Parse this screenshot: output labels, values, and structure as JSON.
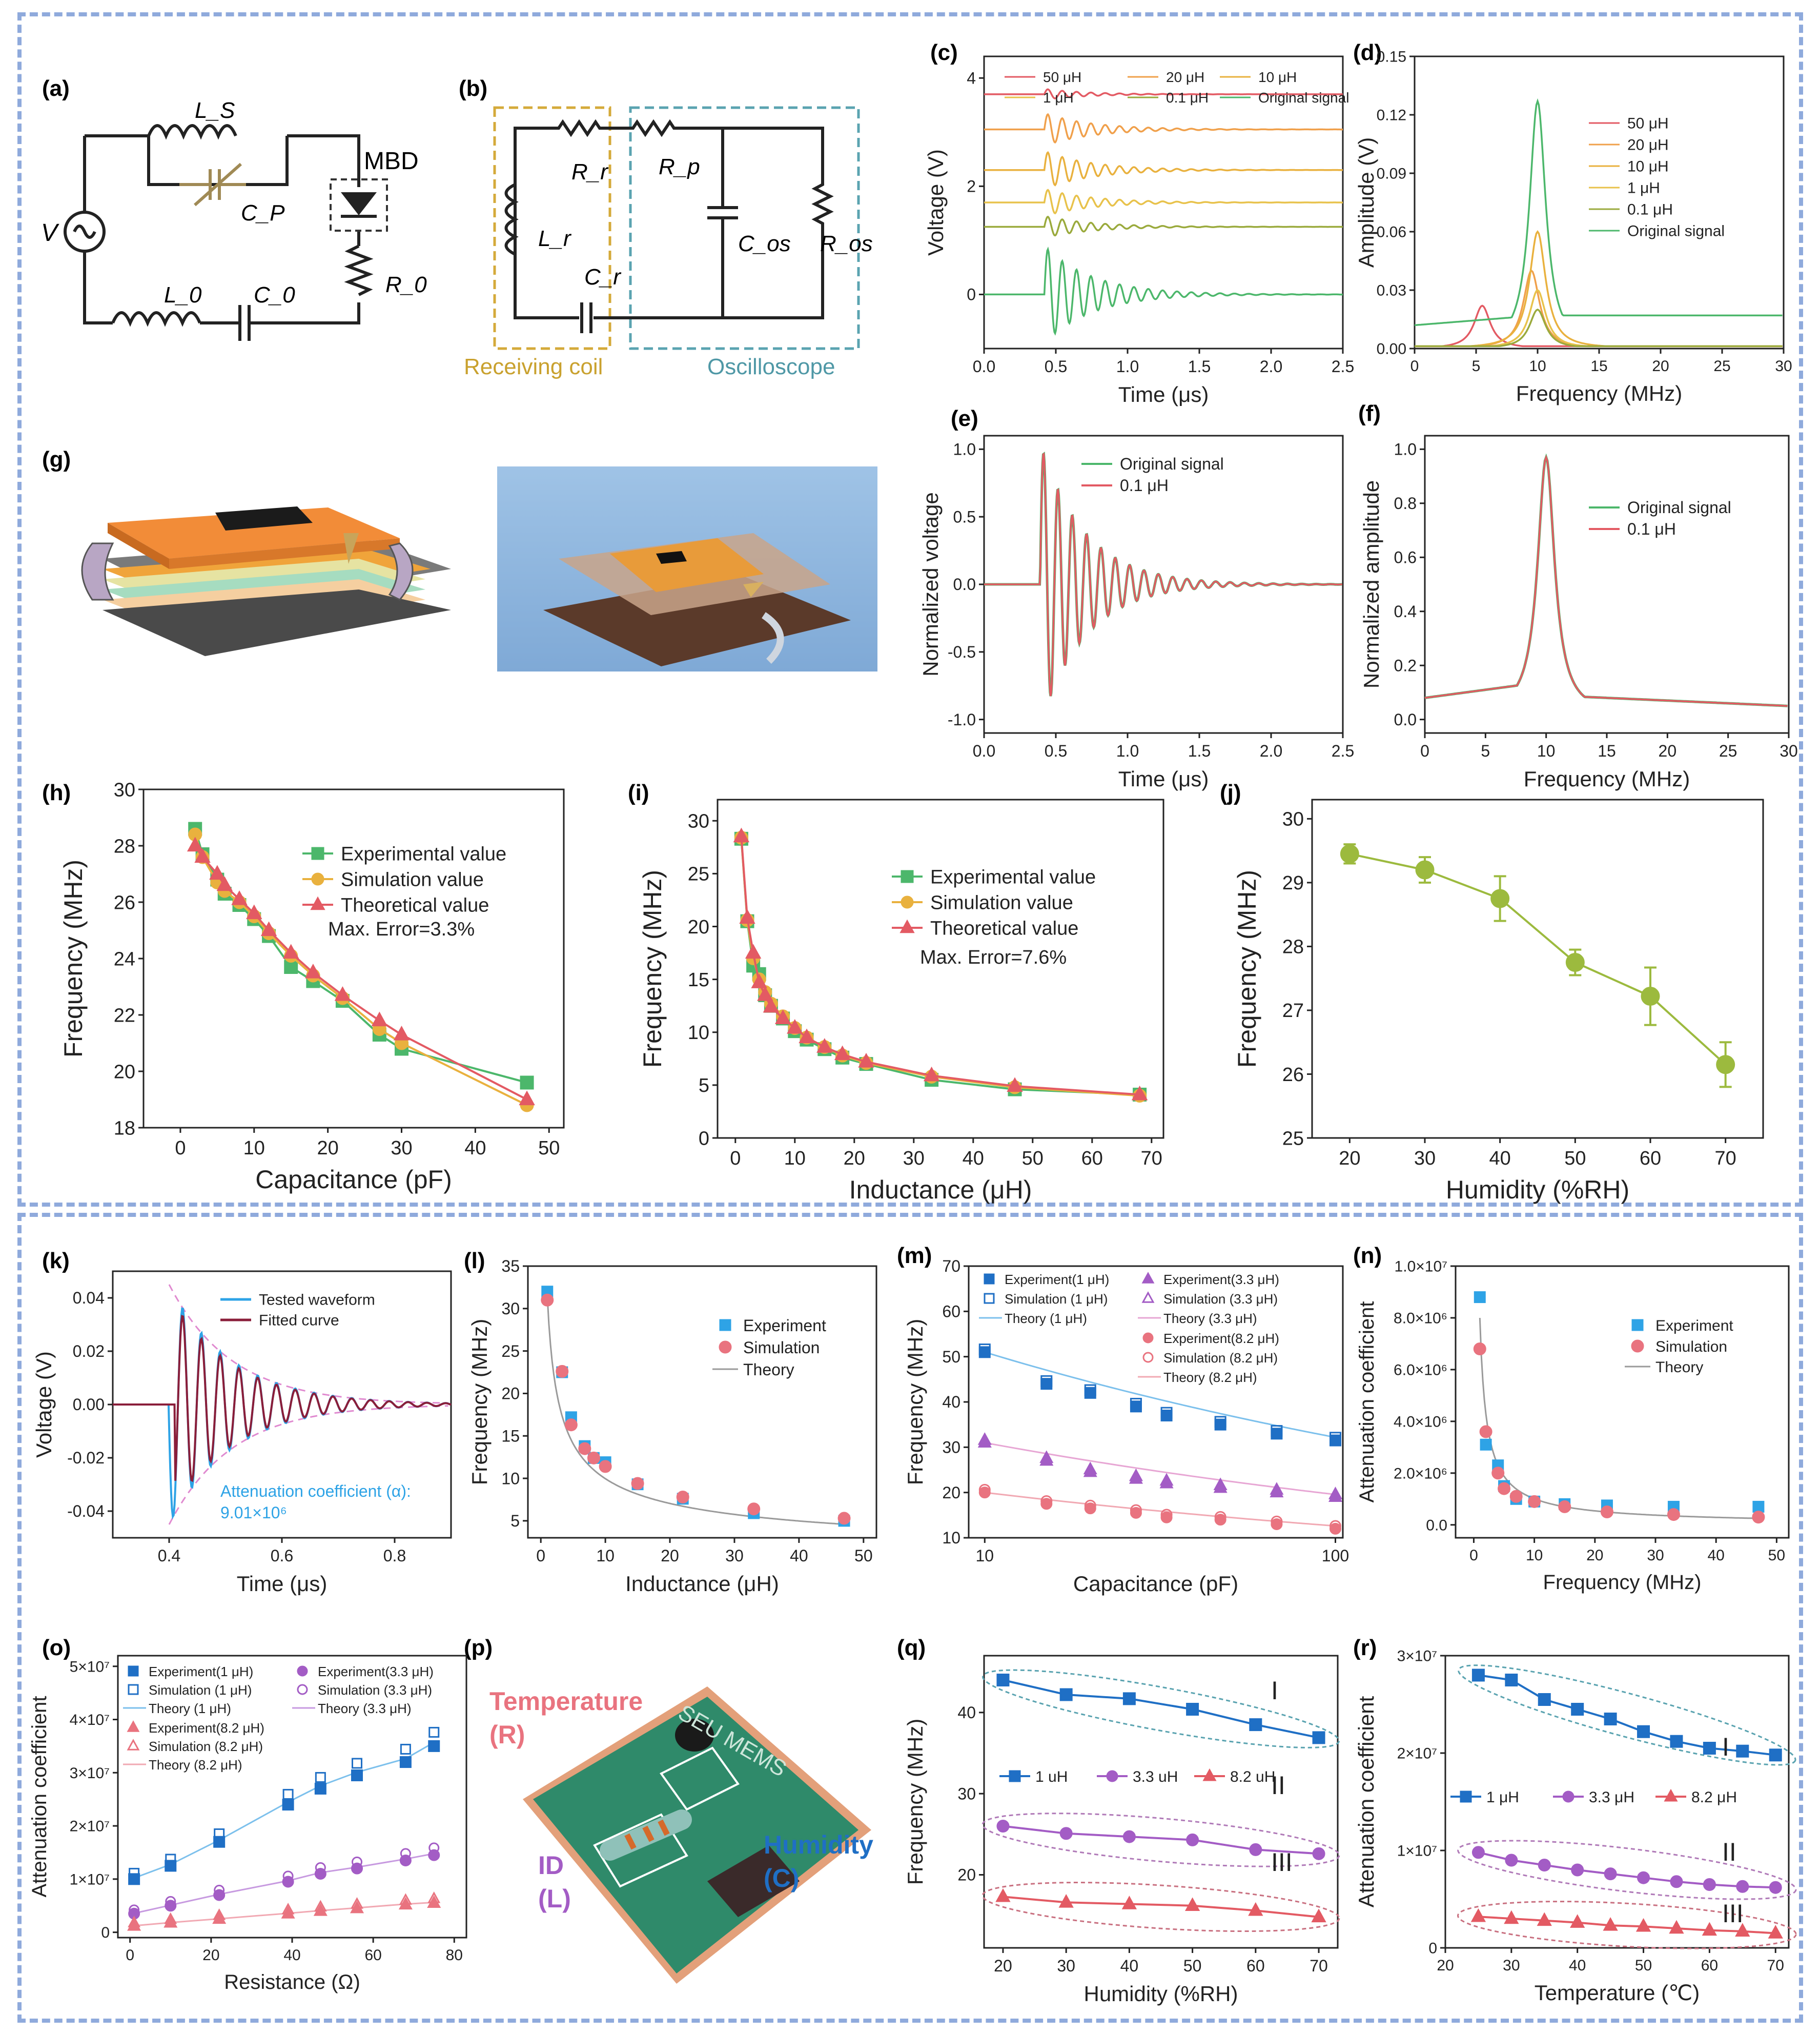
{
  "panel_labels": {
    "a": "(a)",
    "b": "(b)",
    "c": "(c)",
    "d": "(d)",
    "e": "(e)",
    "f": "(f)",
    "g": "(g)",
    "h": "(h)",
    "i": "(i)",
    "j": "(j)",
    "k": "(k)",
    "l": "(l)",
    "m": "(m)",
    "n": "(n)",
    "o": "(o)",
    "p": "(p)",
    "q": "(q)",
    "r": "(r)"
  },
  "circuit_a": {
    "ls": "L_S",
    "cp": "C_P",
    "mbd": "MBD",
    "v": "V",
    "l0": "L_0",
    "c0": "C_0",
    "r0": "R_0"
  },
  "circuit_b": {
    "rr": "R_r",
    "rp": "R_p",
    "lr": "L_r",
    "cr": "C_r",
    "cos": "C_os",
    "ros": "R_os",
    "receiving": "Receiving coil",
    "oscilloscope": "Oscilloscope"
  },
  "photo_p": {
    "temperature": "Temperature",
    "r": "(R)",
    "id": "ID",
    "l": "(L)",
    "humidity": "Humidity",
    "c": "(C)",
    "board": "SEU MEMS"
  },
  "colors": {
    "frame": "#8faadc",
    "green": "#4cb76b",
    "red": "#e35a63",
    "orange": "#f0a04b",
    "yellow": "#e8c24b",
    "olive": "#9aaa3c",
    "blue": "#1f6fc5",
    "sky": "#2ea3e6",
    "pink": "#e9737f",
    "purple": "#a35cc5",
    "olivegreen": "#9cba3e",
    "gold": "#e9b13e"
  },
  "chart_data": [
    {
      "id": "c",
      "type": "line",
      "title": "",
      "xlabel": "Time (μs)",
      "ylabel": "Voltage (V)",
      "xlim": [
        0,
        2.5
      ],
      "ylim": [
        -1,
        4.4
      ],
      "xticks": [
        "0.0",
        "0.5",
        "1.0",
        "1.5",
        "2.0",
        "2.5"
      ],
      "yticks": [
        "0",
        "2",
        "4"
      ],
      "series": [
        {
          "name": "50 μH",
          "offset": 3.7,
          "amp": 0.1,
          "f": 10,
          "decay": 3.5
        },
        {
          "name": "20 μH",
          "offset": 3.05,
          "amp": 0.3,
          "f": 10,
          "decay": 3
        },
        {
          "name": "10 μH",
          "offset": 2.3,
          "amp": 0.35,
          "f": 10,
          "decay": 3
        },
        {
          "name": "1 μH",
          "offset": 1.7,
          "amp": 0.25,
          "f": 10,
          "decay": 3
        },
        {
          "name": "0.1 μH",
          "offset": 1.25,
          "amp": 0.2,
          "f": 10,
          "decay": 3
        },
        {
          "name": "Original signal",
          "offset": 0,
          "amp": 0.9,
          "f": 10,
          "decay": 3
        }
      ]
    },
    {
      "id": "d",
      "type": "line",
      "xlabel": "Frequency (MHz)",
      "ylabel": "Amplitude (V)",
      "xlim": [
        0,
        30
      ],
      "ylim": [
        0,
        0.15
      ],
      "xticks": [
        "0",
        "5",
        "10",
        "15",
        "20",
        "25",
        "30"
      ],
      "yticks": [
        "0.00",
        "0.03",
        "0.06",
        "0.09",
        "0.12",
        "0.15"
      ],
      "series": [
        {
          "name": "50 μH",
          "peak_x": 5.5,
          "peak_y": 0.022
        },
        {
          "name": "20 μH",
          "peak_x": 9.5,
          "peak_y": 0.04
        },
        {
          "name": "10 μH",
          "peak_x": 10,
          "peak_y": 0.06
        },
        {
          "name": "1 μH",
          "peak_x": 10,
          "peak_y": 0.03
        },
        {
          "name": "0.1 μH",
          "peak_x": 10,
          "peak_y": 0.02
        },
        {
          "name": "Original signal",
          "peak_x": 10,
          "peak_y": 0.127
        }
      ]
    },
    {
      "id": "e",
      "type": "line",
      "xlabel": "Time (μs)",
      "ylabel": "Normalized voltage",
      "xlim": [
        0,
        2.5
      ],
      "ylim": [
        -1.1,
        1.1
      ],
      "xticks": [
        "0.0",
        "0.5",
        "1.0",
        "1.5",
        "2.0",
        "2.5"
      ],
      "yticks": [
        "-1.0",
        "-0.5",
        "0.0",
        "0.5",
        "1.0"
      ],
      "series": [
        {
          "name": "Original signal"
        },
        {
          "name": "0.1 μH"
        }
      ]
    },
    {
      "id": "f",
      "type": "line",
      "xlabel": "Frequency (MHz)",
      "ylabel": "Normalized amplitude",
      "xlim": [
        0,
        30
      ],
      "ylim": [
        -0.05,
        1.05
      ],
      "xticks": [
        "0",
        "5",
        "10",
        "15",
        "20",
        "25",
        "30"
      ],
      "yticks": [
        "0.0",
        "0.2",
        "0.4",
        "0.6",
        "0.8",
        "1.0"
      ],
      "series": [
        {
          "name": "Original signal"
        },
        {
          "name": "0.1 μH"
        }
      ]
    },
    {
      "id": "h",
      "type": "line",
      "xlabel": "Capacitance (pF)",
      "ylabel": "Frequency (MHz)",
      "xlim": [
        -5,
        52
      ],
      "ylim": [
        18,
        30
      ],
      "xticks": [
        "0",
        "10",
        "20",
        "30",
        "40",
        "50"
      ],
      "yticks": [
        "18",
        "20",
        "22",
        "24",
        "26",
        "28",
        "30"
      ],
      "annotation": "Max. Error=3.3%",
      "x": [
        2,
        3,
        5,
        6,
        8,
        10,
        12,
        15,
        18,
        22,
        27,
        30,
        47
      ],
      "series": [
        {
          "name": "Experimental value",
          "values": [
            28.6,
            27.7,
            26.8,
            26.3,
            25.9,
            25.4,
            24.8,
            23.7,
            23.2,
            22.5,
            21.3,
            20.8,
            19.6
          ]
        },
        {
          "name": "Simulation value",
          "values": [
            28.4,
            27.6,
            26.7,
            26.4,
            26.0,
            25.5,
            24.9,
            24.1,
            23.4,
            22.6,
            21.5,
            21.0,
            18.8
          ]
        },
        {
          "name": "Theoretical value",
          "values": [
            28.0,
            27.6,
            27.0,
            26.6,
            26.1,
            25.6,
            25.0,
            24.2,
            23.5,
            22.7,
            21.8,
            21.3,
            19.0
          ]
        }
      ]
    },
    {
      "id": "i",
      "type": "line",
      "xlabel": "Inductance (μH)",
      "ylabel": "Frequency (MHz)",
      "xlim": [
        -3,
        72
      ],
      "ylim": [
        0,
        32
      ],
      "xticks": [
        "0",
        "10",
        "20",
        "30",
        "40",
        "50",
        "60",
        "70"
      ],
      "yticks": [
        "0",
        "5",
        "10",
        "15",
        "20",
        "25",
        "30"
      ],
      "annotation": "Max. Error=7.6%",
      "x": [
        1,
        2,
        3,
        4,
        5,
        6,
        8,
        10,
        12,
        15,
        18,
        22,
        33,
        47,
        68
      ],
      "series": [
        {
          "name": "Experimental value",
          "values": [
            28.3,
            20.5,
            16.3,
            15.5,
            13.5,
            12.5,
            11.3,
            10.1,
            9.3,
            8.4,
            7.6,
            7.0,
            5.5,
            4.6,
            4.1
          ]
        },
        {
          "name": "Simulation value",
          "values": [
            28.4,
            20.6,
            17.0,
            15.0,
            13.8,
            12.7,
            11.5,
            10.4,
            9.5,
            8.6,
            7.8,
            7.1,
            5.8,
            4.8,
            4.0
          ]
        },
        {
          "name": "Theoretical value",
          "values": [
            28.5,
            20.8,
            17.5,
            14.7,
            13.5,
            12.4,
            11.3,
            10.4,
            9.5,
            8.6,
            7.9,
            7.2,
            5.9,
            4.9,
            4.1
          ]
        }
      ]
    },
    {
      "id": "j",
      "type": "scatter",
      "xlabel": "Humidity (%RH)",
      "ylabel": "Frequency (MHz)",
      "xlim": [
        15,
        75
      ],
      "ylim": [
        25,
        30.3
      ],
      "xticks": [
        "20",
        "30",
        "40",
        "50",
        "60",
        "70"
      ],
      "yticks": [
        "25",
        "26",
        "27",
        "28",
        "29",
        "30"
      ],
      "x": [
        20,
        30,
        40,
        50,
        60,
        70
      ],
      "values": [
        29.45,
        29.2,
        28.75,
        27.75,
        27.22,
        26.15
      ],
      "errors": [
        0.15,
        0.2,
        0.35,
        0.2,
        0.45,
        0.35
      ]
    },
    {
      "id": "k",
      "type": "line",
      "xlabel": "Time (μs)",
      "ylabel": "Voltage (V)",
      "xlim": [
        0.3,
        0.9
      ],
      "ylim": [
        -0.05,
        0.05
      ],
      "xticks": [
        "0.4",
        "0.6",
        "0.8"
      ],
      "yticks": [
        "-0.04",
        "-0.02",
        "0.00",
        "0.02",
        "0.04"
      ],
      "legend": [
        "Tested waveform",
        "Fitted curve"
      ],
      "annotation1": "Attenuation coefficient (α):",
      "annotation2": "9.01×10⁶"
    },
    {
      "id": "l",
      "type": "scatter",
      "xlabel": "Inductance (μH)",
      "ylabel": "Frequency (MHz)",
      "xlim": [
        -2,
        52
      ],
      "ylim": [
        3,
        35
      ],
      "xticks": [
        "0",
        "10",
        "20",
        "30",
        "40",
        "50"
      ],
      "yticks": [
        "5",
        "10",
        "15",
        "20",
        "25",
        "30",
        "35"
      ],
      "x": [
        1,
        3.3,
        4.7,
        6.8,
        8.2,
        10,
        15,
        22,
        33,
        47
      ],
      "series": [
        {
          "name": "Experiment",
          "values": [
            32,
            22.5,
            17.2,
            13.8,
            12.4,
            11.9,
            9.3,
            7.6,
            5.9,
            5.0
          ]
        },
        {
          "name": "Simulation",
          "values": [
            31,
            22.6,
            16.3,
            13.5,
            12.4,
            11.4,
            9.4,
            7.8,
            6.4,
            5.3
          ]
        },
        {
          "name": "Theory",
          "values": [
            31.5,
            22.7,
            16.8,
            13.6,
            12.4,
            11.3,
            9.3,
            7.7,
            6.3,
            5.3
          ]
        }
      ]
    },
    {
      "id": "m",
      "type": "scatter",
      "xlabel": "Capacitance (pF)",
      "ylabel": "Frequency (MHz)",
      "xscale": "log",
      "xlim": [
        9,
        105
      ],
      "ylim": [
        10,
        70
      ],
      "xticks": [
        "10",
        "100"
      ],
      "yticks": [
        "10",
        "20",
        "30",
        "40",
        "50",
        "60",
        "70"
      ],
      "x": [
        10,
        15,
        20,
        27,
        33,
        47,
        68,
        100
      ],
      "legend": [
        "Experiment(1 μH)",
        "Simulation (1 μH)",
        "Theory (1 μH)",
        "Experiment(3.3 μH)",
        "Simulation (3.3 μH)",
        "Theory (3.3 μH)",
        "Experiment(8.2 μH)",
        "Simulation (8.2 μH)",
        "Theory (8.2 μH)"
      ],
      "series": [
        {
          "name": "1 μH",
          "values": [
            51,
            44,
            42,
            39,
            37,
            35,
            33,
            31.5
          ]
        },
        {
          "name": "3.3 μH",
          "values": [
            31,
            27,
            24.5,
            23,
            22,
            21,
            20,
            19
          ]
        },
        {
          "name": "8.2 μH",
          "values": [
            20,
            17.5,
            16.5,
            15.5,
            14.5,
            14,
            13,
            12
          ]
        }
      ]
    },
    {
      "id": "n",
      "type": "scatter",
      "xlabel": "Frequency (MHz)",
      "ylabel": "Attenuation coefficient",
      "xlim": [
        -3,
        52
      ],
      "ylim": [
        -0.05,
        1.0
      ],
      "xticks": [
        "0",
        "10",
        "20",
        "30",
        "40",
        "50"
      ],
      "yticks": [
        "0.0",
        "2.0×10⁶",
        "4.0×10⁶",
        "6.0×10⁶",
        "8.0×10⁶",
        "1.0×10⁷"
      ],
      "x": [
        1,
        2,
        4,
        5,
        7,
        10,
        15,
        22,
        33,
        47
      ],
      "series": [
        {
          "name": "Experiment",
          "values": [
            0.88,
            0.31,
            0.23,
            0.15,
            0.1,
            0.09,
            0.08,
            0.075,
            0.07,
            0.07
          ]
        },
        {
          "name": "Simulation",
          "values": [
            0.68,
            0.36,
            0.2,
            0.14,
            0.11,
            0.09,
            0.07,
            0.05,
            0.04,
            0.03
          ]
        },
        {
          "name": "Theory",
          "values": [
            0.8,
            0.4,
            0.2,
            0.16,
            0.12,
            0.08,
            0.055,
            0.04,
            0.03,
            0.02
          ]
        }
      ]
    },
    {
      "id": "o",
      "type": "scatter",
      "xlabel": "Resistance (Ω)",
      "ylabel": "Attenuation coefficient",
      "xlim": [
        -3,
        83
      ],
      "ylim": [
        -0.1,
        5.2
      ],
      "xticks": [
        "0",
        "20",
        "40",
        "60",
        "80"
      ],
      "yticks": [
        "0",
        "1×10⁷",
        "2×10⁷",
        "3×10⁷",
        "4×10⁷",
        "5×10⁷"
      ],
      "x": [
        1,
        10,
        22,
        39,
        47,
        56,
        68,
        75
      ],
      "legend": [
        "Experiment(1 μH)",
        "Simulation (1 μH)",
        "Theory (1 μH)",
        "Experiment(3.3 μH)",
        "Simulation (3.3 μH)",
        "Theory (3.3 μH)",
        "Experiment(8.2 μH)",
        "Simulation (8.2 μH)",
        "Theory (8.2 μH)"
      ],
      "series": [
        {
          "name": "1 μH",
          "values": [
            1.0,
            1.25,
            1.7,
            2.4,
            2.7,
            2.95,
            3.2,
            3.5
          ]
        },
        {
          "name": "3.3 μH",
          "values": [
            0.35,
            0.5,
            0.7,
            0.95,
            1.1,
            1.2,
            1.35,
            1.45
          ]
        },
        {
          "name": "8.2 μH",
          "values": [
            0.12,
            0.18,
            0.25,
            0.35,
            0.4,
            0.45,
            0.52,
            0.55
          ]
        }
      ]
    },
    {
      "id": "q",
      "type": "line",
      "xlabel": "Humidity (%RH)",
      "ylabel": "Frequency (MHz)",
      "xlim": [
        17,
        73
      ],
      "ylim": [
        11,
        47
      ],
      "xticks": [
        "20",
        "30",
        "40",
        "50",
        "60",
        "70"
      ],
      "yticks": [
        "20",
        "30",
        "40"
      ],
      "x": [
        20,
        30,
        40,
        50,
        60,
        70
      ],
      "groups": [
        "I",
        "II",
        "III"
      ],
      "series": [
        {
          "name": "1 uH",
          "values": [
            44,
            42.2,
            41.7,
            40.4,
            38.5,
            36.9
          ]
        },
        {
          "name": "3.3 uH",
          "values": [
            26,
            25.1,
            24.7,
            24.3,
            23.1,
            22.6
          ]
        },
        {
          "name": "8.2 uH",
          "values": [
            17.3,
            16.6,
            16.4,
            16.2,
            15.6,
            14.8
          ]
        }
      ]
    },
    {
      "id": "r",
      "type": "line",
      "xlabel": "Temperature (℃)",
      "ylabel": "Attenuation coefficient",
      "xlim": [
        20,
        72
      ],
      "ylim": [
        0,
        3
      ],
      "xticks": [
        "20",
        "30",
        "40",
        "50",
        "60",
        "70"
      ],
      "yticks": [
        "0",
        "1×10⁷",
        "2×10⁷",
        "3×10⁷"
      ],
      "x": [
        25,
        30,
        35,
        40,
        45,
        50,
        55,
        60,
        65,
        70
      ],
      "groups": [
        "I",
        "II",
        "III"
      ],
      "series": [
        {
          "name": "1 μH",
          "values": [
            2.8,
            2.75,
            2.55,
            2.45,
            2.35,
            2.22,
            2.12,
            2.05,
            2.02,
            1.98
          ]
        },
        {
          "name": "3.3 μH",
          "values": [
            0.98,
            0.9,
            0.85,
            0.8,
            0.76,
            0.72,
            0.68,
            0.65,
            0.63,
            0.62
          ]
        },
        {
          "name": "8.2 μH",
          "values": [
            0.32,
            0.3,
            0.28,
            0.26,
            0.23,
            0.22,
            0.2,
            0.18,
            0.17,
            0.15
          ]
        }
      ]
    }
  ]
}
